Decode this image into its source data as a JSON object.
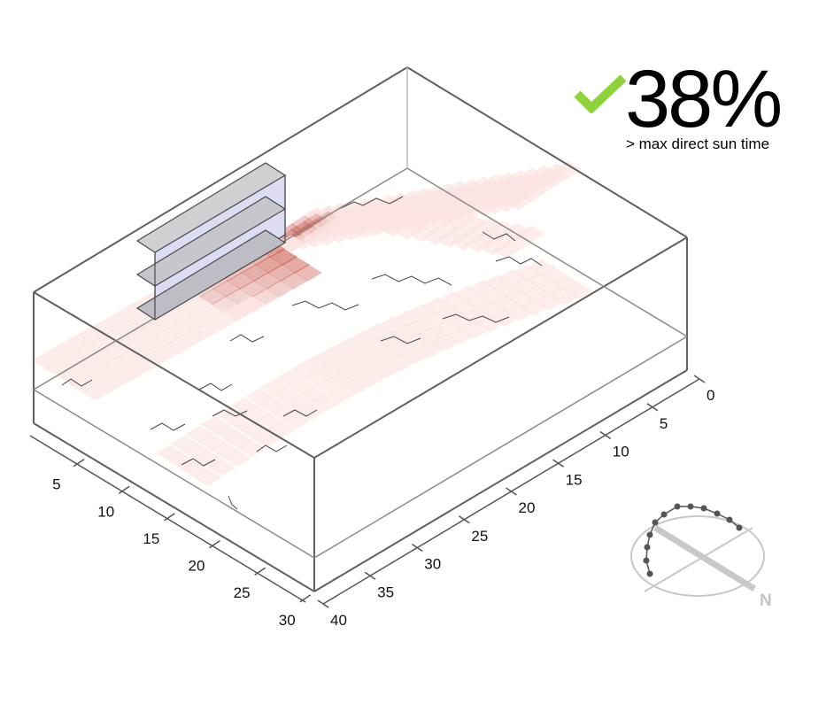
{
  "result": {
    "percent": "38%",
    "caption": "> max direct sun time",
    "status_icon": "check-icon",
    "check_color": "#8cd43a"
  },
  "axes": {
    "x_ticks": [
      "5",
      "10",
      "15",
      "20",
      "25",
      "30"
    ],
    "y_ticks": [
      "0",
      "5",
      "10",
      "15",
      "20",
      "25",
      "30",
      "35",
      "40"
    ]
  },
  "compass": {
    "north_label": "N"
  },
  "colors": {
    "heat_low": "#fbe4e1",
    "heat_high": "#c0392b",
    "building_top": "#d2d2d4",
    "building_front": "#dcdcf2",
    "frame": "#555555"
  }
}
